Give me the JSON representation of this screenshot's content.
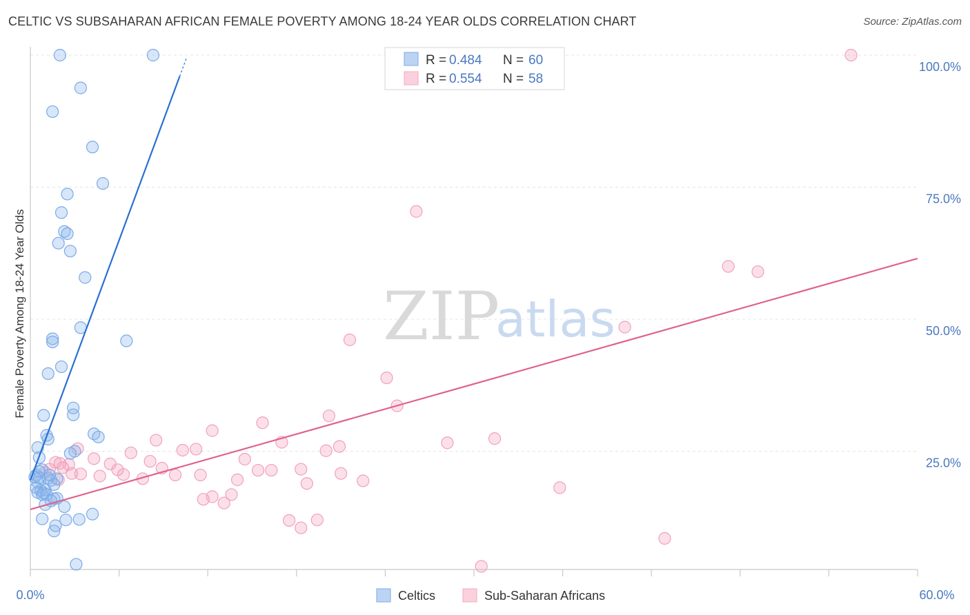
{
  "header": {
    "title": "CELTIC VS SUBSAHARAN AFRICAN FEMALE POVERTY AMONG 18-24 YEAR OLDS CORRELATION CHART",
    "source": "Source: ZipAtlas.com"
  },
  "watermark": {
    "zip": "ZIP",
    "atlas": "atlas"
  },
  "legend": {
    "r_label": "R =",
    "n_label": "N =",
    "celtic": {
      "r": "0.484",
      "n": "60"
    },
    "subsaharan": {
      "r": "0.554",
      "n": "58"
    }
  },
  "bottom_legend": {
    "celtic": "Celtics",
    "subsaharan": "Sub-Saharan Africans"
  },
  "chart_data": {
    "type": "scatter",
    "title": "CELTIC VS SUBSAHARAN AFRICAN FEMALE POVERTY AMONG 18-24 YEAR OLDS CORRELATION CHART",
    "xlabel": "",
    "ylabel": "Female Poverty Among 18-24 Year Olds",
    "xlim": [
      0,
      60
    ],
    "ylim": [
      0,
      102
    ],
    "x_tick_labels": [
      "0.0%",
      "60.0%"
    ],
    "y_ticks": [
      25,
      50,
      75,
      100
    ],
    "y_tick_labels": [
      "25.0%",
      "50.0%",
      "75.0%",
      "100.0%"
    ],
    "grid": true,
    "legend_position": "top-center",
    "colors": {
      "celtic": "#7aaae8",
      "celtic_line": "#2a6fd0",
      "subsaharan": "#f4a7bf",
      "subsaharan_line": "#e0628c"
    },
    "series": [
      {
        "name": "Celtics",
        "r": 0.484,
        "n": 60,
        "trend": {
          "x0": 0.0,
          "y0": 19.5,
          "x1": 10.1,
          "y1": 96.0
        },
        "points": [
          [
            2.0,
            100.0
          ],
          [
            8.3,
            100.0
          ],
          [
            3.4,
            93.8
          ],
          [
            1.5,
            89.3
          ],
          [
            4.2,
            82.6
          ],
          [
            4.9,
            75.7
          ],
          [
            2.5,
            73.7
          ],
          [
            2.1,
            70.2
          ],
          [
            2.3,
            66.6
          ],
          [
            2.5,
            66.2
          ],
          [
            1.9,
            64.4
          ],
          [
            2.7,
            62.9
          ],
          [
            3.7,
            57.9
          ],
          [
            3.4,
            48.4
          ],
          [
            1.5,
            46.3
          ],
          [
            6.5,
            45.9
          ],
          [
            1.5,
            45.7
          ],
          [
            2.1,
            41.0
          ],
          [
            1.2,
            39.7
          ],
          [
            2.9,
            33.2
          ],
          [
            2.9,
            31.9
          ],
          [
            0.9,
            31.8
          ],
          [
            1.1,
            28.0
          ],
          [
            1.2,
            27.3
          ],
          [
            4.3,
            28.3
          ],
          [
            4.6,
            27.7
          ],
          [
            0.5,
            25.7
          ],
          [
            3.0,
            25.0
          ],
          [
            2.7,
            24.6
          ],
          [
            0.6,
            23.8
          ],
          [
            0.4,
            20.5
          ],
          [
            0.6,
            21.2
          ],
          [
            0.8,
            21.5
          ],
          [
            0.3,
            20.1
          ],
          [
            1.2,
            19.9
          ],
          [
            1.4,
            19.5
          ],
          [
            1.8,
            19.8
          ],
          [
            0.5,
            19.1
          ],
          [
            1.6,
            18.7
          ],
          [
            0.4,
            18.1
          ],
          [
            0.7,
            17.6
          ],
          [
            1.0,
            17.7
          ],
          [
            0.9,
            17.1
          ],
          [
            0.5,
            17.2
          ],
          [
            0.8,
            16.8
          ],
          [
            1.1,
            16.8
          ],
          [
            1.6,
            16.0
          ],
          [
            1.8,
            16.1
          ],
          [
            1.4,
            15.6
          ],
          [
            1.0,
            14.9
          ],
          [
            2.3,
            14.5
          ],
          [
            4.2,
            13.1
          ],
          [
            0.8,
            12.2
          ],
          [
            2.4,
            12.0
          ],
          [
            3.3,
            12.1
          ],
          [
            1.7,
            10.9
          ],
          [
            1.6,
            9.9
          ],
          [
            3.1,
            3.6
          ],
          [
            0.6,
            20.0
          ],
          [
            1.3,
            20.5
          ]
        ]
      },
      {
        "name": "Sub-Saharan Africans",
        "r": 0.554,
        "n": 58,
        "trend": {
          "x0": 0.0,
          "y0": 14.0,
          "x1": 60.0,
          "y1": 61.5
        },
        "points": [
          [
            55.5,
            100.0
          ],
          [
            26.1,
            70.4
          ],
          [
            47.2,
            60.0
          ],
          [
            49.2,
            59.0
          ],
          [
            40.2,
            48.5
          ],
          [
            21.6,
            46.1
          ],
          [
            24.1,
            38.9
          ],
          [
            24.8,
            33.6
          ],
          [
            20.2,
            31.7
          ],
          [
            15.7,
            30.4
          ],
          [
            12.3,
            28.9
          ],
          [
            8.5,
            27.1
          ],
          [
            17.0,
            26.7
          ],
          [
            28.2,
            26.6
          ],
          [
            31.4,
            27.4
          ],
          [
            20.9,
            25.9
          ],
          [
            20.0,
            25.1
          ],
          [
            3.2,
            25.5
          ],
          [
            10.3,
            25.2
          ],
          [
            11.2,
            25.4
          ],
          [
            6.8,
            24.7
          ],
          [
            4.3,
            23.6
          ],
          [
            14.5,
            23.5
          ],
          [
            1.7,
            22.9
          ],
          [
            2.6,
            22.5
          ],
          [
            2.0,
            22.7
          ],
          [
            8.1,
            23.1
          ],
          [
            5.4,
            22.6
          ],
          [
            1.3,
            21.6
          ],
          [
            8.9,
            21.8
          ],
          [
            15.4,
            21.4
          ],
          [
            16.3,
            21.4
          ],
          [
            18.3,
            21.6
          ],
          [
            5.9,
            21.5
          ],
          [
            3.4,
            20.7
          ],
          [
            6.3,
            20.6
          ],
          [
            2.8,
            20.8
          ],
          [
            4.7,
            20.3
          ],
          [
            9.8,
            20.5
          ],
          [
            11.5,
            20.5
          ],
          [
            21.0,
            20.8
          ],
          [
            7.6,
            19.8
          ],
          [
            14.0,
            19.6
          ],
          [
            1.9,
            19.6
          ],
          [
            18.7,
            18.9
          ],
          [
            22.5,
            19.4
          ],
          [
            35.8,
            18.1
          ],
          [
            13.6,
            16.8
          ],
          [
            12.3,
            16.4
          ],
          [
            11.7,
            15.9
          ],
          [
            13.1,
            15.2
          ],
          [
            17.5,
            11.9
          ],
          [
            19.4,
            12.0
          ],
          [
            18.3,
            10.5
          ],
          [
            42.9,
            8.5
          ],
          [
            30.5,
            3.2
          ],
          [
            1.0,
            21.0
          ],
          [
            2.2,
            21.9
          ]
        ]
      }
    ]
  }
}
